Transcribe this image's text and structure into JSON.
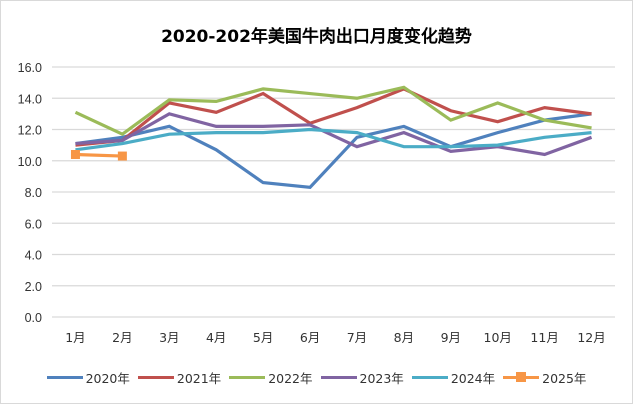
{
  "title": "2020-202年美国牛肉出口月度变化趋势",
  "chart_data": {
    "type": "line",
    "title": "2020-202年美国牛肉出口月度变化趋势",
    "xlabel": "",
    "ylabel": "",
    "ylim": [
      0,
      16
    ],
    "yticks": [
      "0.0",
      "2.0",
      "4.0",
      "6.0",
      "8.0",
      "10.0",
      "12.0",
      "14.0",
      "16.0"
    ],
    "grid": true,
    "legend_position": "bottom",
    "categories": [
      "1月",
      "2月",
      "3月",
      "4月",
      "5月",
      "6月",
      "7月",
      "8月",
      "9月",
      "10月",
      "11月",
      "12月"
    ],
    "series": [
      {
        "name": "2020年",
        "color": "#4F81BD",
        "values": [
          11.1,
          11.5,
          12.2,
          10.7,
          8.6,
          8.3,
          11.5,
          12.2,
          10.9,
          11.8,
          12.6,
          13.0
        ]
      },
      {
        "name": "2021年",
        "color": "#C0504D",
        "values": [
          11.0,
          11.3,
          13.7,
          13.1,
          14.3,
          12.4,
          13.4,
          14.6,
          13.2,
          12.5,
          13.4,
          13.0
        ]
      },
      {
        "name": "2022年",
        "color": "#9BBB59",
        "values": [
          13.1,
          11.7,
          13.9,
          13.8,
          14.6,
          14.3,
          14.0,
          14.7,
          12.6,
          13.7,
          12.6,
          12.1
        ]
      },
      {
        "name": "2023年",
        "color": "#8064A2",
        "values": [
          11.1,
          11.3,
          13.0,
          12.2,
          12.2,
          12.3,
          10.9,
          11.8,
          10.6,
          10.9,
          10.4,
          11.5
        ]
      },
      {
        "name": "2024年",
        "color": "#4BACC6",
        "values": [
          10.7,
          11.1,
          11.7,
          11.8,
          11.8,
          12.0,
          11.8,
          10.9,
          10.9,
          11.0,
          11.5,
          11.8
        ]
      },
      {
        "name": "2025年",
        "color": "#F79646",
        "values": [
          10.4,
          10.3
        ],
        "marker": "square"
      }
    ]
  }
}
